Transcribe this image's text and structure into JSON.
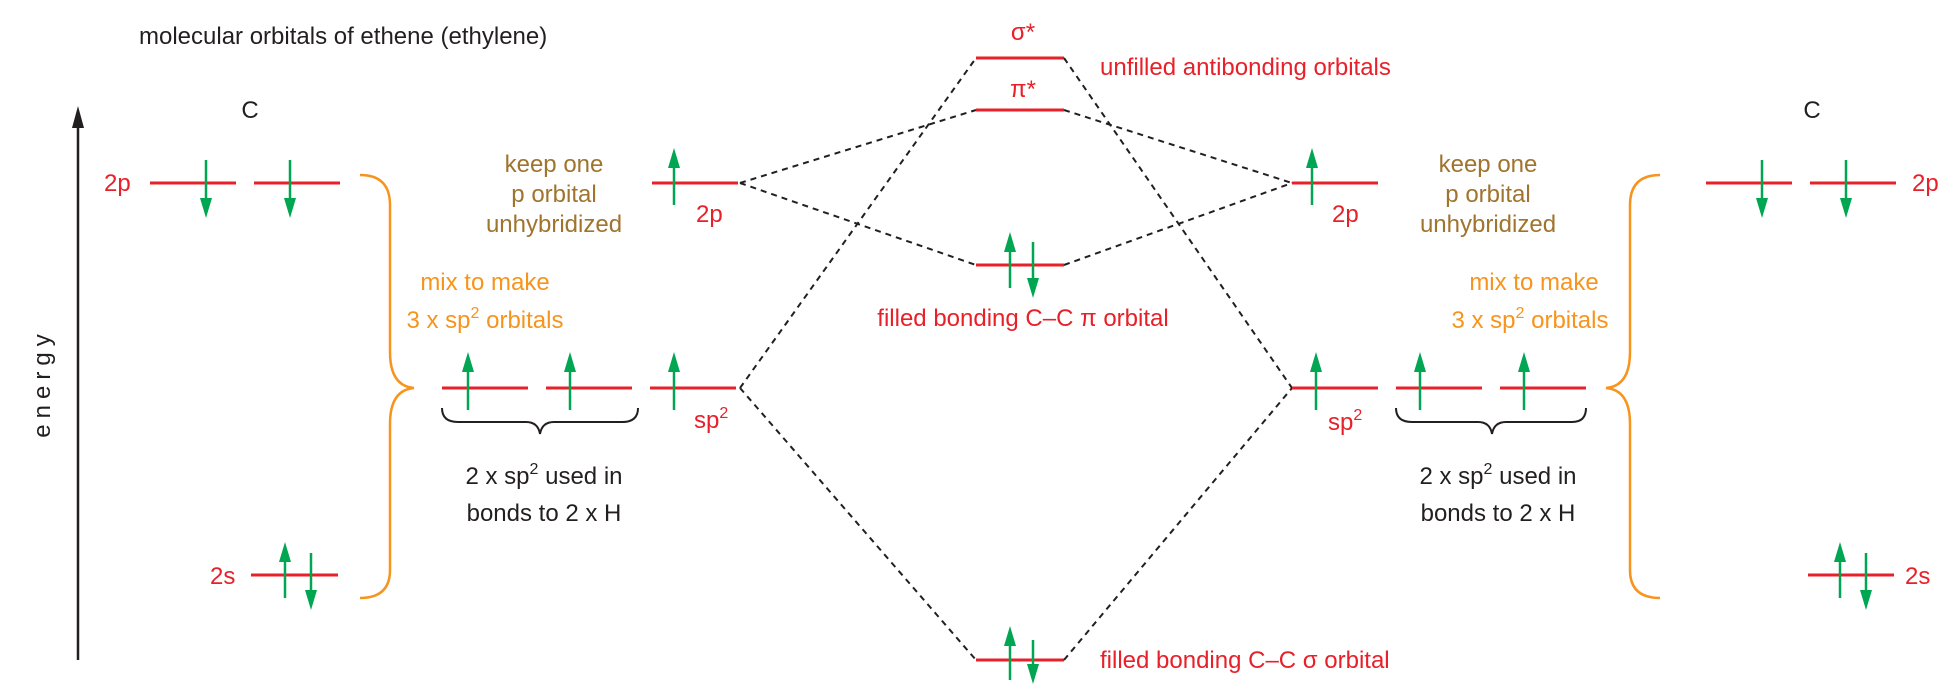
{
  "title": "molecular orbitals of ethene (ethylene)",
  "axis_label": "energy",
  "atom_labels": {
    "left": "C",
    "right": "C"
  },
  "atomic_levels": {
    "p": "2p",
    "s": "2s"
  },
  "hybrid_levels": {
    "p": "2p",
    "sp2": "sp",
    "sp2_sup": "2"
  },
  "molecular_orbitals": {
    "sigma_star": "σ*",
    "pi_star": "π*"
  },
  "annotations": {
    "antibonding": "unfilled antibonding orbitals",
    "pi_bonding": "filled bonding C–C π orbital",
    "sigma_bonding": "filled bonding C–C σ orbital",
    "keep_left": [
      "keep one",
      "p orbital",
      "unhybridized"
    ],
    "keep_right": [
      "keep one",
      "p orbital",
      "unhybridized"
    ],
    "mix_line1": "mix to make",
    "mix_line2_pre": "3 x sp",
    "mix_line2_sup": "2",
    "mix_line2_post": " orbitals",
    "used_line1_pre": "2 x sp",
    "used_line1_sup": "2",
    "used_line1_post": " used in",
    "used_line2": "bonds to 2 x H"
  },
  "colors": {
    "red": "#e8202a",
    "green": "#00a651",
    "orange": "#f7941d",
    "brown": "#a0742d",
    "black": "#231f20"
  }
}
